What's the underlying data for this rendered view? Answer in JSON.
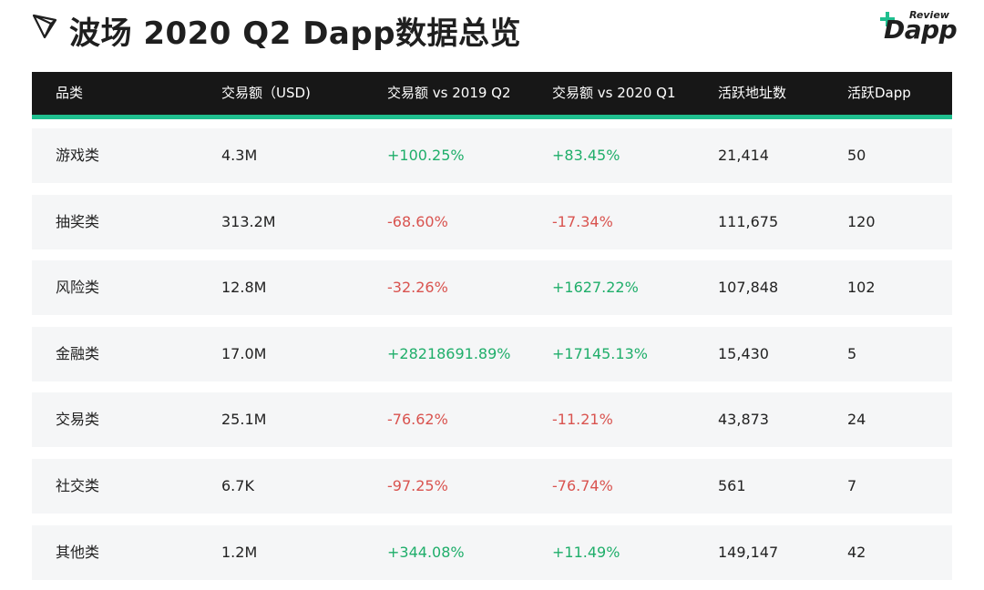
{
  "header": {
    "title": "波场 2020 Q2 Dapp数据总览",
    "brand_small": "Review",
    "brand_big": "Dapp",
    "logo_icon": "tron-logo-icon",
    "colors": {
      "accent": "#1fbf8f",
      "header_bg": "#171717",
      "positive": "#1fae6a",
      "negative": "#d9534f",
      "row_bg": "#f5f6f7"
    }
  },
  "table": {
    "columns": [
      "品类",
      "交易额（USD)",
      "交易额 vs 2019 Q2",
      "交易额 vs 2020 Q1",
      "活跃地址数",
      "活跃Dapp"
    ],
    "rows": [
      [
        "游戏类",
        "4.3M",
        "+100.25%",
        "+83.45%",
        "21,414",
        "50"
      ],
      [
        "抽奖类",
        "313.2M",
        "-68.60%",
        "-17.34%",
        "111,675",
        "120"
      ],
      [
        "风险类",
        "12.8M",
        "-32.26%",
        "+1627.22%",
        "107,848",
        "102"
      ],
      [
        "金融类",
        "17.0M",
        "+28218691.89%",
        "+17145.13%",
        "15,430",
        "5"
      ],
      [
        "交易类",
        "25.1M",
        "-76.62%",
        "-11.21%",
        "43,873",
        "24"
      ],
      [
        "社交类",
        "6.7K",
        "-97.25%",
        "-76.74%",
        "561",
        "7"
      ],
      [
        "其他类",
        "1.2M",
        "+344.08%",
        "+11.49%",
        "149,147",
        "42"
      ]
    ]
  }
}
